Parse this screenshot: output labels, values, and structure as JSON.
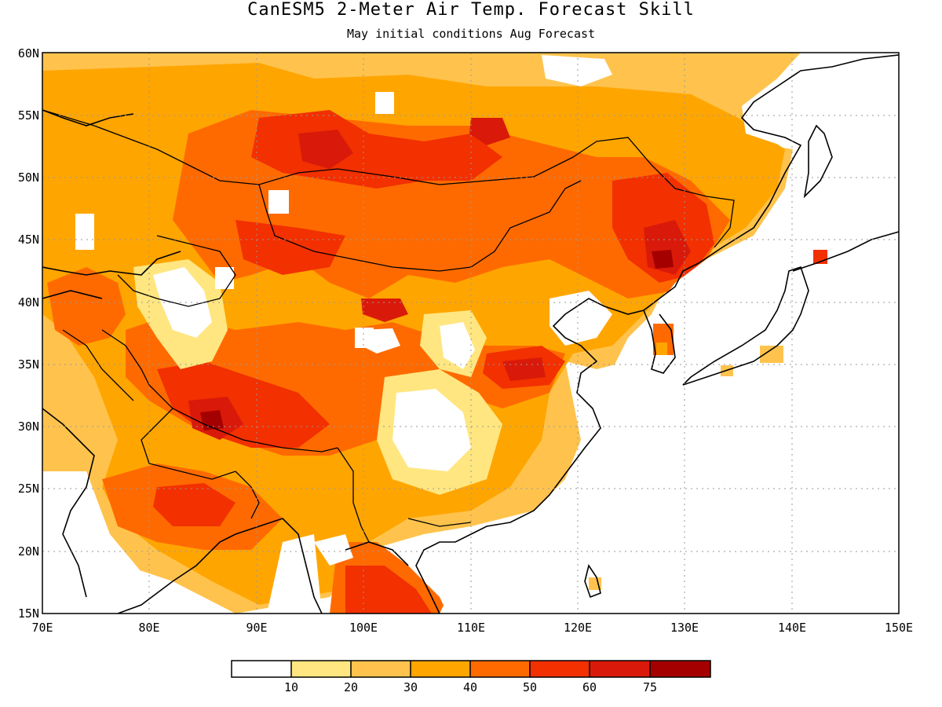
{
  "title": "CanESM5 2-Meter Air Temp. Forecast Skill",
  "subtitle": "May initial conditions  Aug Forecast",
  "map": {
    "lon_range": [
      70,
      150
    ],
    "lat_range": [
      15,
      60
    ],
    "lat_labels": [
      "60N",
      "55N",
      "50N",
      "45N",
      "40N",
      "35N",
      "30N",
      "25N",
      "20N",
      "15N"
    ],
    "lon_labels": [
      "70E",
      "80E",
      "90E",
      "100E",
      "110E",
      "120E",
      "130E",
      "140E",
      "150E"
    ],
    "grid": "dotted"
  },
  "legend": {
    "labels": [
      "10",
      "20",
      "30",
      "40",
      "50",
      "60",
      "75"
    ],
    "colors": [
      "#ffffff",
      "#ffe680",
      "#ffc34d",
      "#ffa500",
      "#ff6a00",
      "#f23000",
      "#d91a0a",
      "#a50000"
    ]
  },
  "colors": {
    "c10": "#ffe680",
    "c20": "#ffc34d",
    "c30": "#ffa500",
    "c40": "#ff6a00",
    "c50": "#f23000",
    "c60": "#d91a0a",
    "c75": "#a50000"
  }
}
